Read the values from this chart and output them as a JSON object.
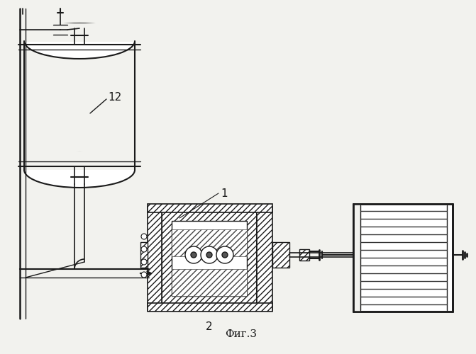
{
  "bg_color": "#f2f2ee",
  "line_color": "#1a1a1a",
  "title": "Фиг.3",
  "label_1": "1",
  "label_2": "2",
  "label_12": "12",
  "fig_width": 6.71,
  "fig_height": 5.0
}
